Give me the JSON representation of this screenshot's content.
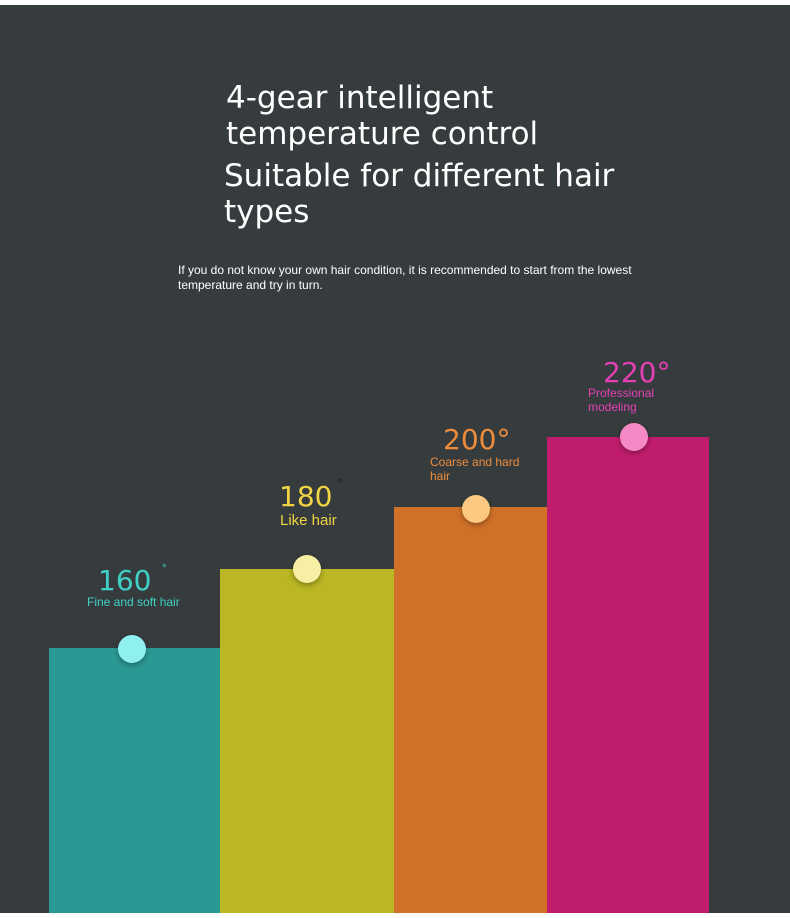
{
  "headline": {
    "line1": "4-gear intelligent temperature control",
    "line2": "Suitable for different hair types"
  },
  "subtitle": "If you do not know your own hair condition, it is recommended to start from the lowest temperature and try in turn.",
  "gears": [
    {
      "temp": "160",
      "degree": "°",
      "label": "Fine and soft hair",
      "color": "#2a9994",
      "text_color": "#3fd1c6",
      "dot_color": "#8ff0ee"
    },
    {
      "temp": "180",
      "degree": "°",
      "label": "Like hair",
      "color": "#bbb623",
      "text_color": "#f0d443",
      "dot_color": "#f7f0a4"
    },
    {
      "temp": "200°",
      "degree": "",
      "label": "Coarse and hard hair",
      "color": "#d17128",
      "text_color": "#ee8c3c",
      "dot_color": "#fcc882"
    },
    {
      "temp": "220°",
      "degree": "",
      "label": "Professional modeling",
      "color": "#c01c6c",
      "text_color": "#e53fb5",
      "dot_color": "#f589c6"
    }
  ]
}
